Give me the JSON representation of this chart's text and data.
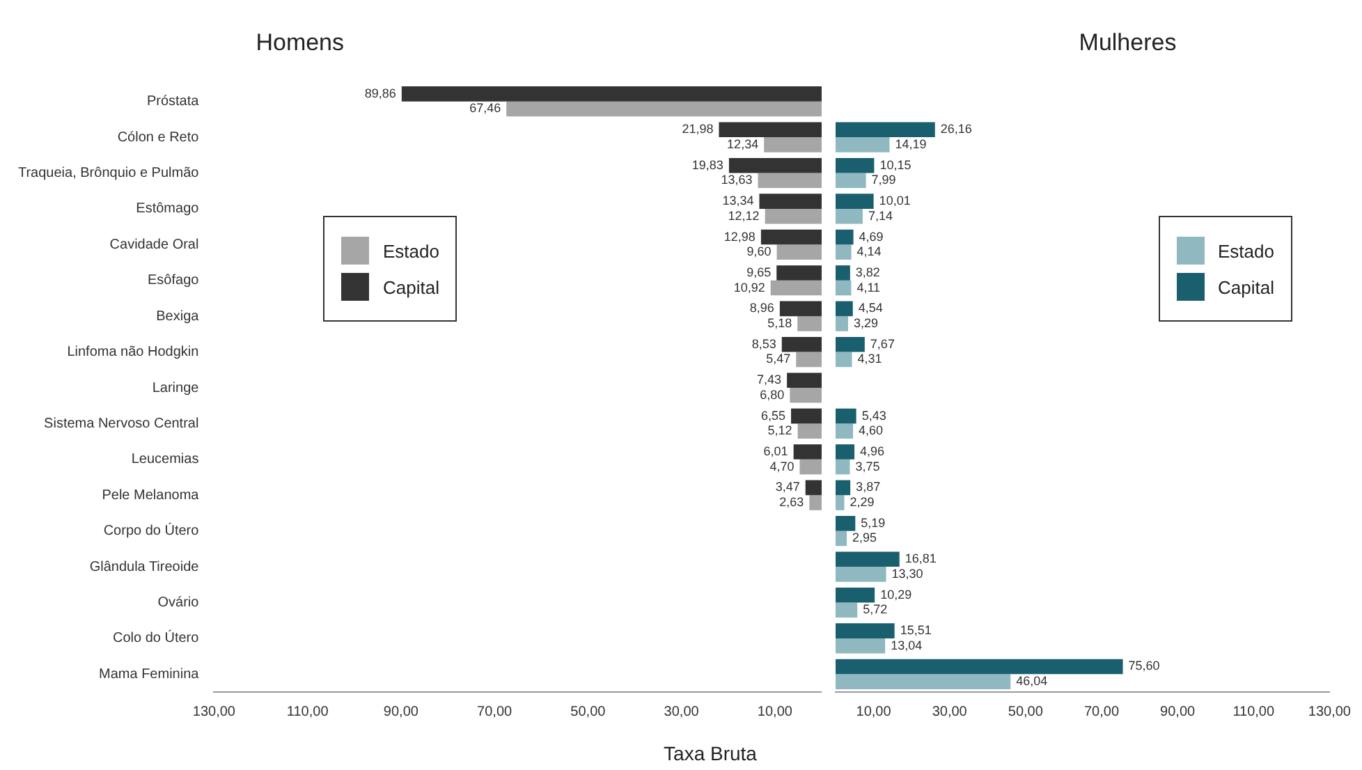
{
  "chart_data": [
    {
      "type": "bar",
      "orientation": "horizontal",
      "title": "Homens",
      "xlabel": "Taxa Bruta",
      "categories": [
        "Próstata",
        "Cólon e Reto",
        "Traqueia, Brônquio e Pulmão",
        "Estômago",
        "Cavidade Oral",
        "Esôfago",
        "Bexiga",
        "Linfoma não Hodgkin",
        "Laringe",
        "Sistema Nervoso Central",
        "Leucemias",
        "Pele Melanoma",
        "Corpo do Útero",
        "Glândula Tireoide",
        "Ovário",
        "Colo do Útero",
        "Mama Feminina"
      ],
      "series": [
        {
          "name": "Capital",
          "color": "#333333",
          "values": [
            89.86,
            21.98,
            19.83,
            13.34,
            12.98,
            9.65,
            8.96,
            8.53,
            7.43,
            6.55,
            6.01,
            3.47,
            null,
            null,
            null,
            null,
            null
          ],
          "value_labels": [
            "89,86",
            "21,98",
            "19,83",
            "13,34",
            "12,98",
            "9,65",
            "8,96",
            "8,53",
            "7,43",
            "6,55",
            "6,01",
            "3,47",
            null,
            null,
            null,
            null,
            null
          ]
        },
        {
          "name": "Estado",
          "color": "#a6a6a6",
          "values": [
            67.46,
            12.34,
            13.63,
            12.12,
            9.6,
            10.92,
            5.18,
            5.47,
            6.8,
            5.12,
            4.7,
            2.63,
            null,
            null,
            null,
            null,
            null
          ],
          "value_labels": [
            "67,46",
            "12,34",
            "13,63",
            "12,12",
            "9,60",
            "10,92",
            "5,18",
            "5,47",
            "6,80",
            "5,12",
            "4,70",
            "2,63",
            null,
            null,
            null,
            null,
            null
          ]
        }
      ],
      "xlim": [
        130,
        0
      ],
      "xticks": [
        {
          "value": 130,
          "label": "130,00"
        },
        {
          "value": 110,
          "label": "110,00"
        },
        {
          "value": 90,
          "label": "90,00"
        },
        {
          "value": 70,
          "label": "70,00"
        },
        {
          "value": 50,
          "label": "50,00"
        },
        {
          "value": 30,
          "label": "30,00"
        },
        {
          "value": 10,
          "label": "10,00"
        }
      ],
      "legend": "left",
      "grid": false
    },
    {
      "type": "bar",
      "orientation": "horizontal",
      "title": "Mulheres",
      "categories": [
        null,
        null,
        null,
        null,
        null,
        null,
        null,
        null,
        null,
        null,
        null,
        null,
        null,
        null,
        null,
        null,
        null
      ],
      "series": [
        {
          "name": "Capital",
          "color": "#1a5f6e",
          "values": [
            null,
            26.16,
            10.15,
            10.01,
            4.69,
            3.82,
            4.54,
            7.67,
            null,
            5.43,
            4.96,
            3.87,
            5.19,
            16.81,
            10.29,
            15.51,
            75.6
          ],
          "value_labels": [
            null,
            "26,16",
            "10,15",
            "10,01",
            "4,69",
            "3,82",
            "4,54",
            "7,67",
            null,
            "5,43",
            "4,96",
            "3,87",
            "5,19",
            "16,81",
            "10,29",
            "15,51",
            "75,60"
          ]
        },
        {
          "name": "Estado",
          "color": "#8fb8c0",
          "values": [
            null,
            14.19,
            7.99,
            7.14,
            4.14,
            4.11,
            3.29,
            4.31,
            null,
            4.6,
            3.75,
            2.29,
            2.95,
            13.3,
            5.72,
            13.04,
            46.04
          ],
          "value_labels": [
            null,
            "14,19",
            "7,99",
            "7,14",
            "4,14",
            "4,11",
            "3,29",
            "4,31",
            null,
            "4,60",
            "3,75",
            "2,29",
            "2,95",
            "13,30",
            "5,72",
            "13,04",
            "46,04"
          ]
        }
      ],
      "xlim": [
        0,
        130
      ],
      "xticks": [
        {
          "value": 10,
          "label": "10,00"
        },
        {
          "value": 30,
          "label": "30,00"
        },
        {
          "value": 50,
          "label": "50,00"
        },
        {
          "value": 70,
          "label": "70,00"
        },
        {
          "value": 90,
          "label": "90,00"
        },
        {
          "value": 110,
          "label": "110,00"
        },
        {
          "value": 130,
          "label": "130,00"
        }
      ],
      "legend": "right",
      "grid": false
    }
  ]
}
